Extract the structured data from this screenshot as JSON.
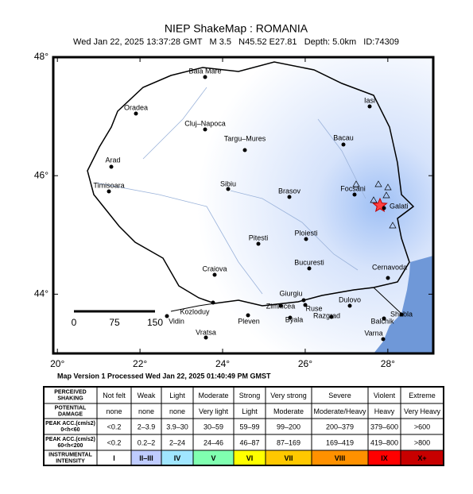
{
  "header": {
    "title": "NIEP ShakeMap : ROMANIA",
    "subtitle": "Wed Jan 22, 2025 13:37:28 GMT   M 3.5   N45.52 E27.81   Depth: 5.0km   ID:74309",
    "version": "Map Version 1 Processed Wed Jan 22, 2025 01:40:49 PM GMST"
  },
  "map": {
    "xlim": [
      19.9,
      29.1
    ],
    "ylim": [
      43.0,
      48.0
    ],
    "xticks": [
      {
        "value": 20,
        "label": "20°"
      },
      {
        "value": 22,
        "label": "22°"
      },
      {
        "value": 24,
        "label": "24°"
      },
      {
        "value": 26,
        "label": "26°"
      },
      {
        "value": 28,
        "label": "28°"
      }
    ],
    "yticks": [
      {
        "value": 44,
        "label": "44°"
      },
      {
        "value": 46,
        "label": "46°"
      },
      {
        "value": 48,
        "label": "48°"
      }
    ],
    "scale_bar": [
      "0",
      "75",
      "150"
    ],
    "cities": [
      "Baia Mare",
      "Oradea",
      "Cluj–Napoca",
      "Targu–Mures",
      "Iasi",
      "Bacau",
      "Arad",
      "Timisoara",
      "Sibiu",
      "Brasov",
      "Focsani",
      "Galati",
      "Ploiesti",
      "Pitesti",
      "Bucuresti",
      "Cernavoda",
      "Craiova",
      "Giurgiu",
      "Kozloduy",
      "Vidin",
      "Zimnicea",
      "Ruse",
      "Dulovo",
      "Razgrad",
      "Shabla",
      "Pleven",
      "Byala",
      "Balchik",
      "Vratsa",
      "Varna"
    ]
  },
  "legend": {
    "rows": [
      {
        "label": [
          "PERCEIVED",
          "SHAKING"
        ],
        "cells": [
          "Not felt",
          "Weak",
          "Light",
          "Moderate",
          "Strong",
          "Very strong",
          "Severe",
          "Violent",
          "Extreme"
        ]
      },
      {
        "label": [
          "POTENTIAL",
          "DAMAGE"
        ],
        "cells": [
          "none",
          "none",
          "none",
          "Very light",
          "Light",
          "Moderate",
          "Moderate/Heavy",
          "Heavy",
          "Very Heavy"
        ]
      },
      {
        "label": [
          "PEAK ACC.(cm/s2)",
          "0<h<60"
        ],
        "cells": [
          "<0.2",
          "2–3.9",
          "3.9–30",
          "30–59",
          "59–99",
          "99–200",
          "200–379",
          "379–600",
          ">600"
        ]
      },
      {
        "label": [
          "PEAK ACC.(cm/s2)",
          "60<h<200"
        ],
        "cells": [
          "<0.2",
          "0.2–2",
          "2–24",
          "24–46",
          "46–87",
          "87–169",
          "169–419",
          "419–800",
          ">800"
        ]
      },
      {
        "label": [
          "INSTRUMENTAL",
          "INTENSITY"
        ],
        "cells": [
          "I",
          "II–III",
          "IV",
          "V",
          "VI",
          "VII",
          "VIII",
          "IX",
          "X+"
        ],
        "colors": [
          "#ffffff",
          "#bfccff",
          "#a0e6ff",
          "#80ffb0",
          "#ffff00",
          "#ffc800",
          "#ff9100",
          "#ff0000",
          "#c80000"
        ]
      }
    ]
  }
}
